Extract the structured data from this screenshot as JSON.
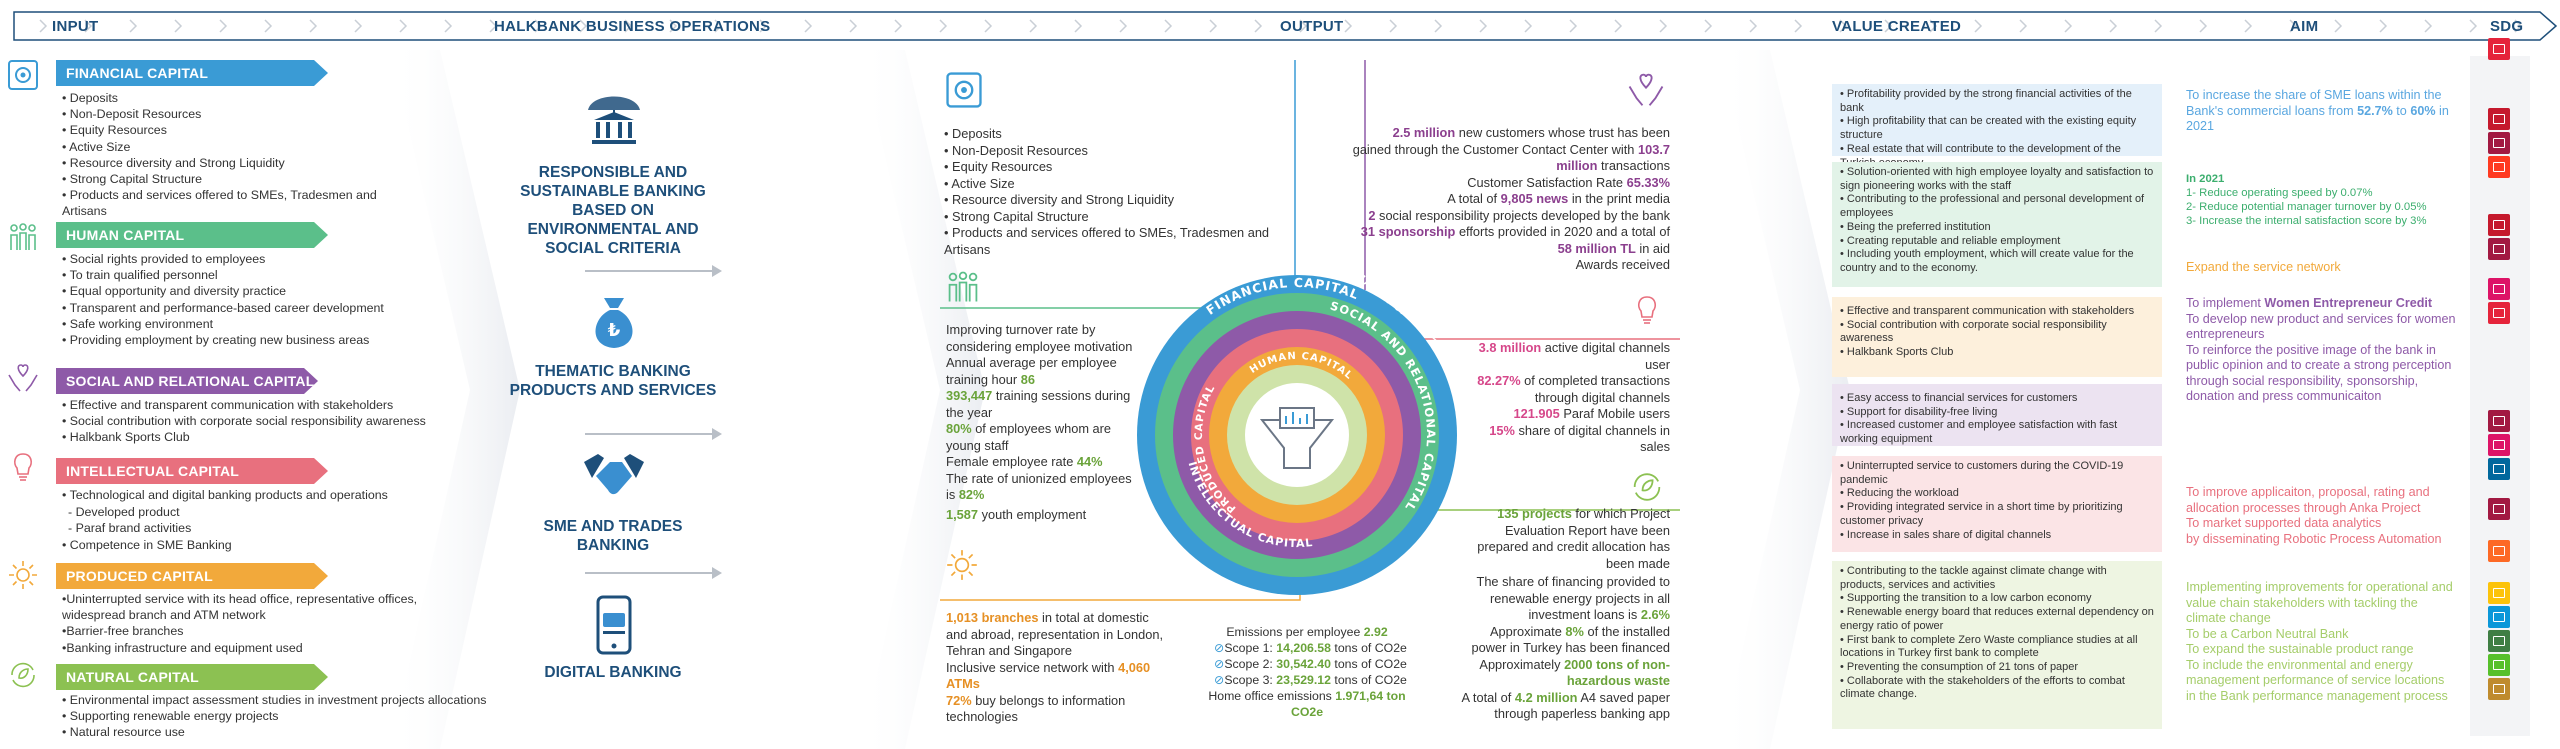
{
  "header": {
    "input": "INPUT",
    "operations": "HALKBANK BUSINESS OPERATIONS",
    "output": "OUTPUT",
    "value_created": "VALUE CREATED",
    "aim": "AIM",
    "sdg": "SDG"
  },
  "colors": {
    "financial": "#3a9bd5",
    "human": "#5bbf8a",
    "social": "#8e5aa8",
    "intellectual": "#e8707e",
    "produced": "#f2a93b",
    "natural": "#8cc152",
    "navy": "#1e4f7a"
  },
  "input": {
    "financial": {
      "title": "FINANCIAL CAPITAL",
      "icon": "safe-icon",
      "items": [
        "Deposits",
        "Non-Deposit Resources",
        "Equity Resources",
        "Active Size",
        "Resource diversity and Strong Liquidity",
        "Strong Capital Structure",
        "Products and services offered to SMEs, Tradesmen and Artisans"
      ]
    },
    "human": {
      "title": "HUMAN CAPITAL",
      "icon": "people-icon",
      "items": [
        "Social rights provided to employees",
        "To train qualified personnel",
        "Equal opportunity and diversity practice",
        "Transparent and performance-based career development",
        "Safe working environment",
        "Providing employment by creating new business areas"
      ]
    },
    "social": {
      "title": "SOCIAL AND RELATIONAL CAPITAL",
      "icon": "hands-heart-icon",
      "items": [
        "Effective and transparent communication with stakeholders",
        "Social contribution with corporate social responsibility awareness",
        "Halkbank Sports Club"
      ]
    },
    "intellectual": {
      "title": "INTELLECTUAL CAPITAL",
      "icon": "lightbulb-icon",
      "items": [
        "Technological and digital banking products and operations"
      ],
      "subitems": [
        "- Developed product",
        "- Paraf brand activities"
      ],
      "items2": [
        "Competence in SME Banking"
      ]
    },
    "produced": {
      "title": "PRODUCED CAPITAL",
      "icon": "gear-icon",
      "lines": [
        "•Uninterrupted service with its head office, representative offices,",
        "widespread branch and ATM network",
        "•Barrier-free branches",
        "•Banking infrastructure and equipment used"
      ]
    },
    "natural": {
      "title": "NATURAL CAPITAL",
      "icon": "recycle-leaf-icon",
      "items": [
        "Environmental impact assessment studies in investment projects allocations",
        "Supporting renewable energy projects",
        "Natural resource use"
      ]
    }
  },
  "operations": {
    "a1": "RESPONSIBLE AND SUSTAINABLE BANKING BASED ON ENVIRONMENTAL AND SOCIAL CRITERIA",
    "a2": "THEMATIC BANKING PRODUCTS AND SERVICES",
    "a3": "SME AND TRADES BANKING",
    "a4": "DIGITAL BANKING"
  },
  "output": {
    "financial_items": [
      "Deposits",
      "Non-Deposit Resources",
      "Equity Resources",
      "Active Size",
      "Resource diversity and Strong Liquidity",
      "Strong Capital Structure",
      "Products and services offered to SMEs, Tradesmen and Artisans"
    ],
    "human": {
      "l1": "Improving turnover rate by considering employee motivation",
      "l2": "Annual average per employee training hour",
      "v2": "86",
      "v3": "393,447",
      "l3": "training sessions during the year",
      "v4": "80%",
      "l4": "of employees whom are young staff",
      "l5": "Female employee rate",
      "v5": "44%",
      "l6": "The rate of unionized employees is",
      "v6": "82%",
      "v7": "1,587",
      "l7": "youth employment"
    },
    "produced": {
      "v1": "1,013 branches",
      "l1": "in total at domestic and abroad, representation in London, Tehran and Singapore",
      "l2": "Inclusive service network with",
      "v2": "4,060 ATMs",
      "v3": "72%",
      "l3": "buy belongs to information technologies"
    },
    "social": {
      "v1": "2.5 million",
      "l1": "new customers whose trust has been gained through the Customer Contact Center with",
      "v2": "103.7 million",
      "l2": "transactions",
      "l3": "Customer Satisfaction Rate",
      "v3": "65.33%",
      "l4": "A total of",
      "v4": "9,805 news",
      "l4b": "in the print media",
      "v5": "2",
      "l5": "social responsibility projects developed by the bank",
      "v6": "31 sponsorship",
      "l6": "efforts provided in 2020 and a total of",
      "v7": "58 million TL",
      "l7": "in aid",
      "l8": "Awards received"
    },
    "intellectual": {
      "v1": "3.8 million",
      "l1": "active digital channels user",
      "v2": "82.27%",
      "l2": "of completed transactions through digital channels",
      "v3": "121.905",
      "l3": "Paraf Mobile users",
      "v4": "15%",
      "l4": "share of digital channels in sales"
    },
    "natural": {
      "v1": "135 projects",
      "l1": "for which Project Evaluation Report have been prepared and credit allocation has been made",
      "l2": "The share of financing provided to renewable energy projects in all investment loans is",
      "v2": "2.6%",
      "l3": "Approximate",
      "v3": "8%",
      "l3b": "of the installed power in Turkey has been financed",
      "l4": "Approximately",
      "v4": "2000 tons of non-hazardous waste",
      "l5": "A total of",
      "v5": "4.2 million",
      "l5b": "A4 saved paper through paperless banking app"
    },
    "emissions": {
      "l1": "Emissions per employee",
      "v1": "2.92",
      "s1": "Scope 1:",
      "v2": "14,206.58",
      "u": "tons of CO2e",
      "s2": "Scope 2:",
      "v3": "30,542.40",
      "s3": "Scope 3:",
      "v4": "23,529.12",
      "l5": "Home office emissions",
      "v5": "1.971,64 ton",
      "u5": "CO2e"
    },
    "circle": {
      "financial": "FINANCIAL CAPITAL",
      "human": "HUMAN CAPITAL",
      "social": "SOCIAL AND RELATIONAL CAPITAL",
      "intellectual": "INTELLECTUAL CAPITAL",
      "produced": "PRODUCED CAPITAL",
      "human_inner": "HUMAN CAPITAL"
    }
  },
  "value_created": [
    {
      "items": [
        "Profitability provided by the strong financial activities of the bank",
        "High profitability that can be created with the existing equity structure",
        "Real estate that will contribute to the development of the Turkish economy"
      ]
    },
    {
      "items": [
        "Solution-oriented with high employee loyalty and satisfaction to sign pioneering works with the staff",
        "Contributing to the professional and personal development of employees",
        "Being the preferred institution",
        "Creating reputable and reliable employment",
        "Including youth employment, which will create value for the country and to the economy."
      ]
    },
    {
      "items": [
        "Effective and transparent communication with stakeholders",
        "Social contribution with corporate social responsibility awareness",
        "Halkbank Sports Club"
      ]
    },
    {
      "items": [
        "Easy access to financial services for customers",
        "Support for disability-free living",
        "Increased customer and employee satisfaction with fast working equipment"
      ]
    },
    {
      "items": [
        "Uninterrupted service to customers during the COVID-19 pandemic",
        "Reducing the workload",
        "Providing integrated service in a short time by prioritizing customer privacy",
        "Increase in sales share of digital channels"
      ]
    },
    {
      "items": [
        "Contributing to the tackle against climate change with products, services and activities",
        "Supporting the transition to a low carbon economy",
        "Renewable energy board that reduces external dependency on energy ratio of power",
        "First bank to complete Zero Waste compliance studies at all locations in Turkey first bank to complete",
        "Preventing the consumption of 21 tons of paper",
        "Collaborate with the stakeholders of the efforts to combat climate change."
      ]
    }
  ],
  "aim": {
    "a1_pre": "To increase the share of SME loans within the Bank's commercial loans from",
    "a1_v1": "52.7%",
    "a1_mid": "to",
    "a1_v2": "60%",
    "a1_post": "in 2021",
    "a2_head": "In 2021",
    "a2_l1": "1- Reduce operating speed by 0.07%",
    "a2_l2": "2- Reduce potential manager turnover by 0.05%",
    "a2_l3": "3- Increase the internal satisfaction score by 3%",
    "a3": "Expand the service network",
    "a4_pre": "To implement",
    "a4_bold": "Women Entrepreneur Credit",
    "a4_l2": "To develop new product and services for women entrepreneurs",
    "a4_l3": "To reinforce the positive image of the bank in public opinion and to create a strong perception through social responsibility, sponsorship, donation and press communicaiton",
    "a5_l1": "To improve applicaiton, proposal, rating and allocation processes through Anka Project",
    "a5_l2": "To market supported data analytics",
    "a5_l3": "by disseminating Robotic Process Automation",
    "a6_l1": "Implementing improvements for operational and value chain stakeholders with tackling the climate change",
    "a6_l2": "To be a Carbon Neutral Bank",
    "a6_l3": "To expand the sustainable product range",
    "a6_l4": "To include the environmental and energy management performance of service locations in the Bank performance management process"
  },
  "sdg": [
    {
      "color": "#e5243b",
      "icon": "sdg-1-icon"
    },
    {
      "color": "#c5192d",
      "icon": "sdg-4-icon"
    },
    {
      "color": "#a21942",
      "icon": "sdg-8-icon"
    },
    {
      "color": "#ff3a21",
      "icon": "sdg-5-icon"
    },
    {
      "color": "#c5192d",
      "icon": "sdg-4-icon"
    },
    {
      "color": "#a21942",
      "icon": "sdg-8-icon"
    },
    {
      "color": "#dd1367",
      "icon": "sdg-10-icon"
    },
    {
      "color": "#e5243b",
      "icon": "sdg-1-icon"
    },
    {
      "color": "#a21942",
      "icon": "sdg-8-icon"
    },
    {
      "color": "#dd1367",
      "icon": "sdg-10-icon"
    },
    {
      "color": "#00689d",
      "icon": "sdg-16-icon"
    },
    {
      "color": "#a21942",
      "icon": "sdg-8-icon"
    },
    {
      "color": "#fd6925",
      "icon": "sdg-9-icon"
    },
    {
      "color": "#fcc30b",
      "icon": "sdg-7-icon"
    },
    {
      "color": "#0a97d9",
      "icon": "sdg-14-icon"
    },
    {
      "color": "#3f7e44",
      "icon": "sdg-13-icon"
    },
    {
      "color": "#56c02b",
      "icon": "sdg-15-icon"
    },
    {
      "color": "#bf8b2e",
      "icon": "sdg-12-icon"
    }
  ]
}
